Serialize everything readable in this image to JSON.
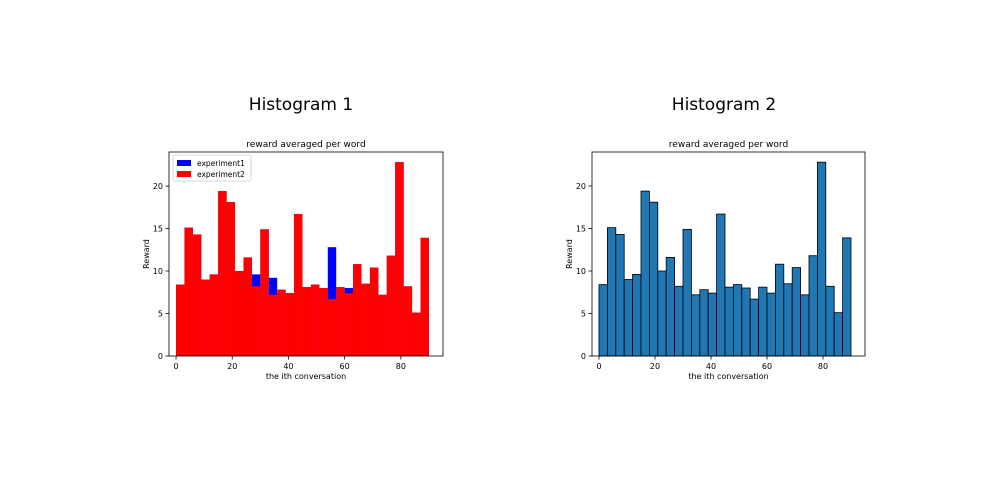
{
  "headings": [
    "Histogram 1",
    "Histogram 2"
  ],
  "chart_data": [
    {
      "type": "bar",
      "title": "reward averaged per word",
      "xlabel": "the ith conversation",
      "ylabel": "Reward",
      "xlim": [
        -2.5,
        95
      ],
      "ylim": [
        0,
        24
      ],
      "xticks": [
        0,
        20,
        40,
        60,
        80
      ],
      "yticks": [
        0,
        5,
        10,
        15,
        20
      ],
      "bin_width": 3,
      "grid": false,
      "legend": "top-left",
      "series": [
        {
          "name": "experiment1",
          "color": "#0000ff",
          "bins": [
            {
              "x": 0,
              "value": 8.4
            },
            {
              "x": 3,
              "value": 15.1
            },
            {
              "x": 6,
              "value": 14.3
            },
            {
              "x": 9,
              "value": 9.0
            },
            {
              "x": 12,
              "value": 9.6
            },
            {
              "x": 15,
              "value": 19.4
            },
            {
              "x": 18,
              "value": 18.1
            },
            {
              "x": 21,
              "value": 10.0
            },
            {
              "x": 24,
              "value": 11.6
            },
            {
              "x": 27,
              "value": 9.6
            },
            {
              "x": 30,
              "value": 14.9
            },
            {
              "x": 33,
              "value": 9.2
            },
            {
              "x": 36,
              "value": 7.8
            },
            {
              "x": 39,
              "value": 7.4
            },
            {
              "x": 42,
              "value": 16.7
            },
            {
              "x": 45,
              "value": 8.1
            },
            {
              "x": 48,
              "value": 8.4
            },
            {
              "x": 51,
              "value": 8.0
            },
            {
              "x": 54,
              "value": 12.8
            },
            {
              "x": 57,
              "value": 8.1
            },
            {
              "x": 60,
              "value": 8.0
            },
            {
              "x": 63,
              "value": 10.8
            },
            {
              "x": 66,
              "value": 8.5
            },
            {
              "x": 69,
              "value": 10.4
            },
            {
              "x": 72,
              "value": 7.2
            },
            {
              "x": 75,
              "value": 11.8
            },
            {
              "x": 78,
              "value": 22.8
            },
            {
              "x": 81,
              "value": 8.2
            },
            {
              "x": 84,
              "value": 5.1
            },
            {
              "x": 87,
              "value": 13.9
            }
          ]
        },
        {
          "name": "experiment2",
          "color": "#ff0000",
          "bins": [
            {
              "x": 0,
              "value": 8.4
            },
            {
              "x": 3,
              "value": 15.1
            },
            {
              "x": 6,
              "value": 14.3
            },
            {
              "x": 9,
              "value": 9.0
            },
            {
              "x": 12,
              "value": 9.6
            },
            {
              "x": 15,
              "value": 19.4
            },
            {
              "x": 18,
              "value": 18.1
            },
            {
              "x": 21,
              "value": 10.0
            },
            {
              "x": 24,
              "value": 11.6
            },
            {
              "x": 27,
              "value": 8.2
            },
            {
              "x": 30,
              "value": 14.9
            },
            {
              "x": 33,
              "value": 7.2
            },
            {
              "x": 36,
              "value": 7.8
            },
            {
              "x": 39,
              "value": 7.4
            },
            {
              "x": 42,
              "value": 16.7
            },
            {
              "x": 45,
              "value": 8.1
            },
            {
              "x": 48,
              "value": 8.4
            },
            {
              "x": 51,
              "value": 8.0
            },
            {
              "x": 54,
              "value": 6.7
            },
            {
              "x": 57,
              "value": 8.1
            },
            {
              "x": 60,
              "value": 7.4
            },
            {
              "x": 63,
              "value": 10.8
            },
            {
              "x": 66,
              "value": 8.5
            },
            {
              "x": 69,
              "value": 10.4
            },
            {
              "x": 72,
              "value": 7.2
            },
            {
              "x": 75,
              "value": 11.8
            },
            {
              "x": 78,
              "value": 22.8
            },
            {
              "x": 81,
              "value": 8.2
            },
            {
              "x": 84,
              "value": 5.1
            },
            {
              "x": 87,
              "value": 13.9
            }
          ]
        }
      ]
    },
    {
      "type": "bar",
      "title": "reward averaged per word",
      "xlabel": "the ith conversation",
      "ylabel": "Reward",
      "xlim": [
        -2.5,
        95
      ],
      "ylim": [
        0,
        24
      ],
      "xticks": [
        0,
        20,
        40,
        60,
        80
      ],
      "yticks": [
        0,
        5,
        10,
        15,
        20
      ],
      "bin_width": 3,
      "grid": false,
      "series": [
        {
          "color": "#1f77b4",
          "edge_color": "#000000",
          "bins": [
            {
              "x": 0,
              "value": 8.4
            },
            {
              "x": 3,
              "value": 15.1
            },
            {
              "x": 6,
              "value": 14.3
            },
            {
              "x": 9,
              "value": 9.0
            },
            {
              "x": 12,
              "value": 9.6
            },
            {
              "x": 15,
              "value": 19.4
            },
            {
              "x": 18,
              "value": 18.1
            },
            {
              "x": 21,
              "value": 10.0
            },
            {
              "x": 24,
              "value": 11.6
            },
            {
              "x": 27,
              "value": 8.2
            },
            {
              "x": 30,
              "value": 14.9
            },
            {
              "x": 33,
              "value": 7.2
            },
            {
              "x": 36,
              "value": 7.8
            },
            {
              "x": 39,
              "value": 7.4
            },
            {
              "x": 42,
              "value": 16.7
            },
            {
              "x": 45,
              "value": 8.1
            },
            {
              "x": 48,
              "value": 8.4
            },
            {
              "x": 51,
              "value": 8.0
            },
            {
              "x": 54,
              "value": 6.7
            },
            {
              "x": 57,
              "value": 8.1
            },
            {
              "x": 60,
              "value": 7.4
            },
            {
              "x": 63,
              "value": 10.8
            },
            {
              "x": 66,
              "value": 8.5
            },
            {
              "x": 69,
              "value": 10.4
            },
            {
              "x": 72,
              "value": 7.2
            },
            {
              "x": 75,
              "value": 11.8
            },
            {
              "x": 78,
              "value": 22.8
            },
            {
              "x": 81,
              "value": 8.2
            },
            {
              "x": 84,
              "value": 5.1
            },
            {
              "x": 87,
              "value": 13.9
            }
          ]
        }
      ]
    }
  ]
}
